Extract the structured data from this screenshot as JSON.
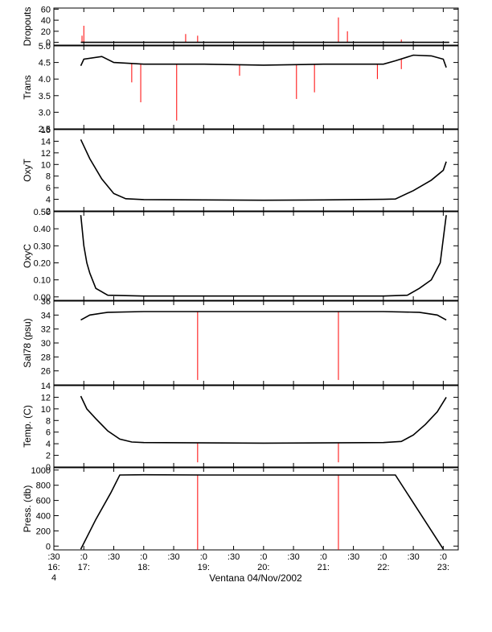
{
  "chart_data": {
    "type": "line",
    "title": "Ventana 04/Nov/2002",
    "colors": {
      "trace": "#000000",
      "spike": "#ff0000",
      "axis": "#000000"
    },
    "x_time_range_hours": [
      16.5,
      23.25
    ],
    "x_ticks": [
      {
        "t": 16.5,
        "label1": ":30",
        "label2": "16:",
        "label3": "4"
      },
      {
        "t": 17.0,
        "label1": ":0",
        "label2": "17:",
        "label3": ""
      },
      {
        "t": 17.5,
        "label1": ":30",
        "label2": "",
        "label3": ""
      },
      {
        "t": 18.0,
        "label1": ":0",
        "label2": "18:",
        "label3": ""
      },
      {
        "t": 18.5,
        "label1": ":30",
        "label2": "",
        "label3": ""
      },
      {
        "t": 19.0,
        "label1": ":0",
        "label2": "19:",
        "label3": ""
      },
      {
        "t": 19.5,
        "label1": ":30",
        "label2": "",
        "label3": ""
      },
      {
        "t": 20.0,
        "label1": ":0",
        "label2": "20:",
        "label3": ""
      },
      {
        "t": 20.5,
        "label1": ":30",
        "label2": "",
        "label3": ""
      },
      {
        "t": 21.0,
        "label1": ":0",
        "label2": "21:",
        "label3": ""
      },
      {
        "t": 21.5,
        "label1": ":30",
        "label2": "",
        "label3": ""
      },
      {
        "t": 22.0,
        "label1": ":0",
        "label2": "22:",
        "label3": ""
      },
      {
        "t": 22.5,
        "label1": ":30",
        "label2": "",
        "label3": ""
      },
      {
        "t": 23.0,
        "label1": ":0",
        "label2": "23:",
        "label3": ""
      }
    ],
    "panels": [
      {
        "id": "dropouts",
        "ylabel": "Dropouts",
        "ylim": [
          -5,
          62
        ],
        "ticks": [
          0,
          20,
          40,
          60
        ],
        "tick_labels": [
          "0",
          "20",
          "40",
          "60"
        ],
        "baseline": [
          [
            16.95,
            0
          ],
          [
            23.1,
            0
          ]
        ],
        "spikes": [
          [
            16.97,
            12
          ],
          [
            17.0,
            30
          ],
          [
            18.7,
            15
          ],
          [
            18.9,
            12
          ],
          [
            21.25,
            45
          ],
          [
            21.4,
            20
          ],
          [
            22.3,
            5
          ]
        ]
      },
      {
        "id": "trans",
        "ylabel": "Trans",
        "ylim": [
          2.5,
          5.0
        ],
        "ticks": [
          2.5,
          3.0,
          3.5,
          4.0,
          4.5,
          5.0
        ],
        "tick_labels": [
          "2.5",
          "3.0",
          "3.5",
          "4.0",
          "4.5",
          "5.0"
        ],
        "series": [
          [
            16.95,
            4.4
          ],
          [
            17.0,
            4.6
          ],
          [
            17.3,
            4.68
          ],
          [
            17.5,
            4.5
          ],
          [
            18.0,
            4.45
          ],
          [
            19.0,
            4.45
          ],
          [
            20.0,
            4.42
          ],
          [
            21.0,
            4.45
          ],
          [
            22.0,
            4.45
          ],
          [
            22.2,
            4.55
          ],
          [
            22.5,
            4.72
          ],
          [
            22.8,
            4.7
          ],
          [
            23.0,
            4.6
          ],
          [
            23.05,
            4.35
          ]
        ],
        "spikes": [
          [
            17.8,
            3.9
          ],
          [
            17.95,
            3.3
          ],
          [
            18.55,
            2.75
          ],
          [
            19.6,
            4.1
          ],
          [
            20.55,
            3.4
          ],
          [
            20.85,
            3.6
          ],
          [
            21.9,
            4.0
          ],
          [
            22.3,
            4.3
          ]
        ]
      },
      {
        "id": "oxyt",
        "ylabel": "OxyT",
        "ylim": [
          2,
          16
        ],
        "ticks": [
          2,
          4,
          6,
          8,
          10,
          12,
          14,
          16
        ],
        "tick_labels": [
          "2",
          "4",
          "6",
          "8",
          "10",
          "12",
          "14",
          "16"
        ],
        "series": [
          [
            16.95,
            14.3
          ],
          [
            17.1,
            11.0
          ],
          [
            17.3,
            7.5
          ],
          [
            17.5,
            5.0
          ],
          [
            17.7,
            4.1
          ],
          [
            18.0,
            3.95
          ],
          [
            19.0,
            3.9
          ],
          [
            20.0,
            3.85
          ],
          [
            21.0,
            3.9
          ],
          [
            22.0,
            4.0
          ],
          [
            22.2,
            4.05
          ],
          [
            22.5,
            5.5
          ],
          [
            22.8,
            7.3
          ],
          [
            23.0,
            9.0
          ],
          [
            23.05,
            10.5
          ]
        ],
        "spikes": []
      },
      {
        "id": "oxyc",
        "ylabel": "OxyC",
        "ylim": [
          -0.02,
          0.5
        ],
        "ticks": [
          0.0,
          0.1,
          0.2,
          0.3,
          0.4,
          0.5
        ],
        "tick_labels": [
          "0.00",
          "0.10",
          "0.20",
          "0.30",
          "0.40",
          "0.50"
        ],
        "series": [
          [
            16.95,
            0.48
          ],
          [
            17.0,
            0.3
          ],
          [
            17.05,
            0.2
          ],
          [
            17.1,
            0.14
          ],
          [
            17.2,
            0.05
          ],
          [
            17.4,
            0.01
          ],
          [
            18.0,
            0.005
          ],
          [
            20.0,
            0.005
          ],
          [
            22.0,
            0.005
          ],
          [
            22.4,
            0.01
          ],
          [
            22.6,
            0.05
          ],
          [
            22.8,
            0.1
          ],
          [
            22.95,
            0.2
          ],
          [
            23.05,
            0.48
          ]
        ],
        "spikes": []
      },
      {
        "id": "sal78",
        "ylabel": "Sal78 (psu)",
        "ylim": [
          24,
          36
        ],
        "ticks": [
          26,
          28,
          30,
          32,
          34,
          36
        ],
        "tick_labels": [
          "26",
          "28",
          "30",
          "32",
          "34",
          "36"
        ],
        "series": [
          [
            16.95,
            33.3
          ],
          [
            17.1,
            34.0
          ],
          [
            17.4,
            34.4
          ],
          [
            18.0,
            34.5
          ],
          [
            20.0,
            34.5
          ],
          [
            22.0,
            34.5
          ],
          [
            22.6,
            34.4
          ],
          [
            22.9,
            34.0
          ],
          [
            23.05,
            33.3
          ]
        ],
        "spikes": [
          [
            18.9,
            24.7
          ],
          [
            21.25,
            24.7
          ]
        ]
      },
      {
        "id": "temp",
        "ylabel": "Temp. (C)",
        "ylim": [
          0,
          14
        ],
        "ticks": [
          0,
          2,
          4,
          6,
          8,
          10,
          12,
          14
        ],
        "tick_labels": [
          "0",
          "2",
          "4",
          "6",
          "8",
          "10",
          "12",
          "14"
        ],
        "series": [
          [
            16.95,
            12.2
          ],
          [
            17.05,
            10.0
          ],
          [
            17.2,
            8.3
          ],
          [
            17.4,
            6.2
          ],
          [
            17.6,
            4.8
          ],
          [
            17.8,
            4.3
          ],
          [
            18.0,
            4.2
          ],
          [
            20.0,
            4.1
          ],
          [
            22.0,
            4.2
          ],
          [
            22.3,
            4.4
          ],
          [
            22.5,
            5.5
          ],
          [
            22.7,
            7.3
          ],
          [
            22.9,
            9.5
          ],
          [
            23.05,
            12.0
          ]
        ],
        "spikes": [
          [
            18.9,
            0.8
          ],
          [
            21.25,
            0.8
          ]
        ]
      },
      {
        "id": "press",
        "ylabel": "Press. (db)",
        "ylim": [
          -50,
          1030
        ],
        "ticks": [
          0,
          200,
          400,
          600,
          800,
          1000
        ],
        "tick_labels": [
          "0",
          "200",
          "400",
          "600",
          "800",
          "1000"
        ],
        "series": [
          [
            16.95,
            -40
          ],
          [
            17.2,
            350
          ],
          [
            17.45,
            700
          ],
          [
            17.6,
            935
          ],
          [
            18.0,
            938
          ],
          [
            19.0,
            935
          ],
          [
            20.0,
            935
          ],
          [
            21.0,
            935
          ],
          [
            22.0,
            935
          ],
          [
            22.2,
            935
          ],
          [
            23.0,
            -40
          ]
        ],
        "spikes": [
          [
            18.9,
            -50
          ],
          [
            21.25,
            -50
          ]
        ]
      }
    ]
  }
}
